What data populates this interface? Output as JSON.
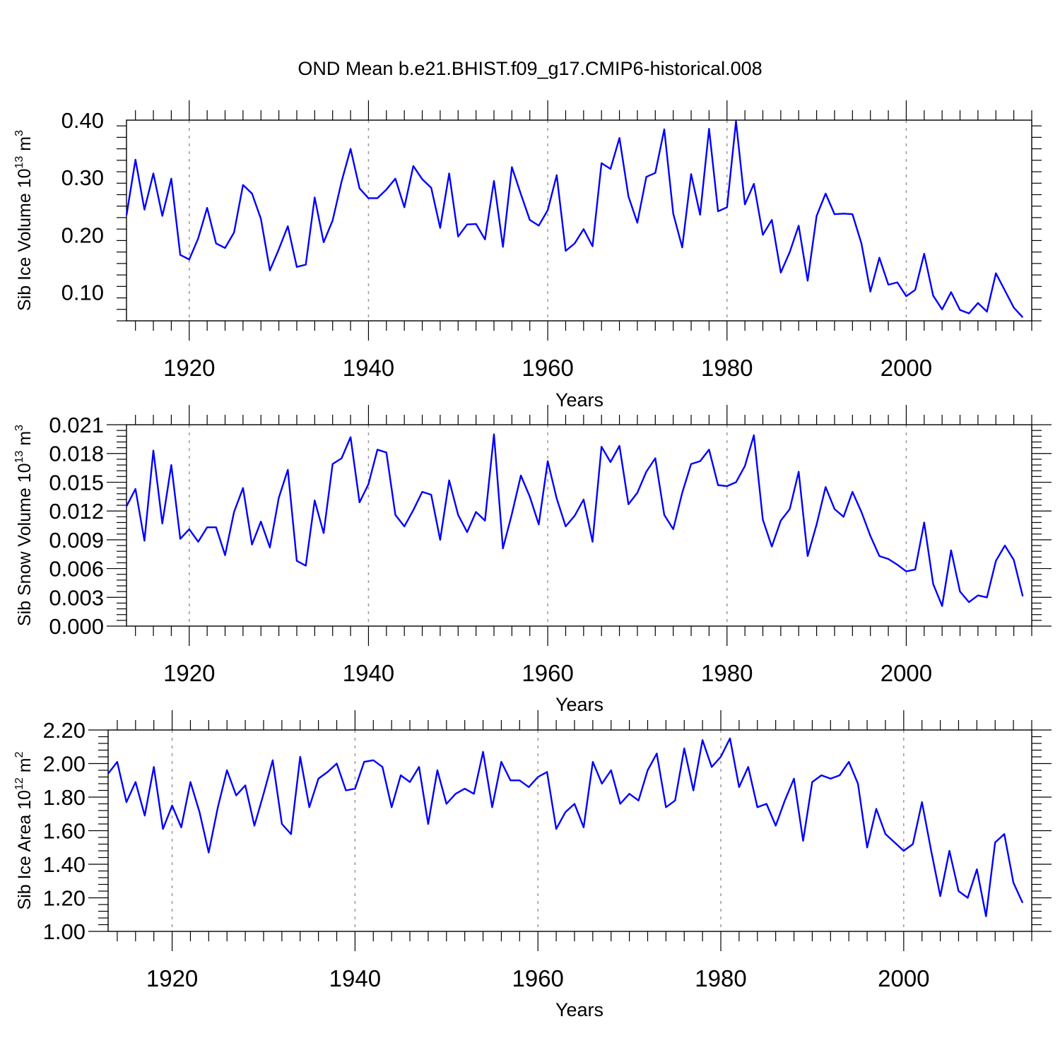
{
  "title": "OND Mean b.e21.BHIST.f09_g17.CMIP6-historical.008",
  "colors": {
    "line": "#0000ff",
    "axis": "#000000",
    "grid": "#999999"
  },
  "chart_data": [
    {
      "type": "line",
      "title": "",
      "xlabel": "Years",
      "ylabel": {
        "text": "Sib Ice Volume 10",
        "exp": "13",
        "unit": " m",
        "unit_exp": "3"
      },
      "xlim": [
        1913,
        2014
      ],
      "ylim": [
        0.05,
        0.4
      ],
      "xticks": [
        1920,
        1940,
        1960,
        1980,
        2000
      ],
      "xtick_labels": [
        "1920",
        "1940",
        "1960",
        "1980",
        "2000"
      ],
      "yticks": [
        0.1,
        0.2,
        0.3,
        0.4
      ],
      "ytick_labels": [
        "0.10",
        "0.20",
        "0.30",
        "0.40"
      ],
      "series": [
        {
          "name": "Sib Ice Volume",
          "x_start": 1913,
          "values": [
            0.234,
            0.331,
            0.244,
            0.307,
            0.233,
            0.298,
            0.165,
            0.157,
            0.194,
            0.247,
            0.185,
            0.177,
            0.204,
            0.287,
            0.272,
            0.228,
            0.138,
            0.175,
            0.215,
            0.144,
            0.148,
            0.265,
            0.187,
            0.225,
            0.293,
            0.35,
            0.281,
            0.264,
            0.264,
            0.279,
            0.298,
            0.248,
            0.32,
            0.297,
            0.282,
            0.212,
            0.307,
            0.197,
            0.218,
            0.219,
            0.192,
            0.294,
            0.179,
            0.318,
            0.271,
            0.226,
            0.216,
            0.243,
            0.304,
            0.172,
            0.185,
            0.21,
            0.18,
            0.325,
            0.315,
            0.369,
            0.267,
            0.221,
            0.301,
            0.308,
            0.384,
            0.237,
            0.178,
            0.306,
            0.235,
            0.385,
            0.241,
            0.248,
            0.398,
            0.253,
            0.289,
            0.2,
            0.226,
            0.134,
            0.17,
            0.216,
            0.12,
            0.233,
            0.272,
            0.236,
            0.237,
            0.236,
            0.185,
            0.101,
            0.16,
            0.113,
            0.117,
            0.093,
            0.104,
            0.167,
            0.094,
            0.07,
            0.1,
            0.069,
            0.063,
            0.081,
            0.066,
            0.133,
            0.103,
            0.073,
            0.056
          ]
        }
      ]
    },
    {
      "type": "line",
      "title": "",
      "xlabel": "Years",
      "ylabel": {
        "text": "Sib Snow Volume 10",
        "exp": "13",
        "unit": " m",
        "unit_exp": "3"
      },
      "xlim": [
        1913,
        2014
      ],
      "ylim": [
        0.0,
        0.021
      ],
      "xticks": [
        1920,
        1940,
        1960,
        1980,
        2000
      ],
      "xtick_labels": [
        "1920",
        "1940",
        "1960",
        "1980",
        "2000"
      ],
      "yticks": [
        0.0,
        0.003,
        0.006,
        0.009,
        0.012,
        0.015,
        0.018,
        0.021
      ],
      "ytick_labels": [
        "0.000",
        "0.003",
        "0.006",
        "0.009",
        "0.012",
        "0.015",
        "0.018",
        "0.021"
      ],
      "series": [
        {
          "name": "Sib Snow Volume",
          "x_start": 1913,
          "values": [
            0.0125,
            0.0143,
            0.0089,
            0.0183,
            0.0107,
            0.0168,
            0.0091,
            0.0101,
            0.0088,
            0.0103,
            0.0103,
            0.0074,
            0.0119,
            0.0144,
            0.0085,
            0.0109,
            0.0082,
            0.0134,
            0.0163,
            0.0068,
            0.0063,
            0.0131,
            0.0097,
            0.0169,
            0.0175,
            0.0197,
            0.0129,
            0.0148,
            0.0184,
            0.0181,
            0.0116,
            0.0104,
            0.0121,
            0.014,
            0.0137,
            0.009,
            0.0152,
            0.0116,
            0.0098,
            0.0119,
            0.011,
            0.02,
            0.0081,
            0.0117,
            0.0157,
            0.0135,
            0.0106,
            0.0172,
            0.0133,
            0.0104,
            0.0115,
            0.0132,
            0.0088,
            0.0187,
            0.0171,
            0.0188,
            0.0127,
            0.0139,
            0.0161,
            0.0175,
            0.0116,
            0.0101,
            0.0139,
            0.0169,
            0.0172,
            0.0184,
            0.0147,
            0.0146,
            0.015,
            0.0167,
            0.0199,
            0.0111,
            0.0083,
            0.011,
            0.0122,
            0.0161,
            0.0073,
            0.0106,
            0.0145,
            0.0122,
            0.0114,
            0.014,
            0.0119,
            0.0094,
            0.0073,
            0.007,
            0.0064,
            0.0057,
            0.0059,
            0.0108,
            0.0044,
            0.0021,
            0.0079,
            0.0036,
            0.0025,
            0.0032,
            0.003,
            0.0068,
            0.0084,
            0.0069,
            0.0031
          ]
        }
      ]
    },
    {
      "type": "line",
      "title": "",
      "xlabel": "Years",
      "ylabel": {
        "text": "Sib Ice Area 10",
        "exp": "12",
        "unit": " m",
        "unit_exp": "2"
      },
      "xlim": [
        1913,
        2014
      ],
      "ylim": [
        1.0,
        2.2
      ],
      "xticks": [
        1920,
        1940,
        1960,
        1980,
        2000
      ],
      "xtick_labels": [
        "1920",
        "1940",
        "1960",
        "1980",
        "2000"
      ],
      "yticks": [
        1.0,
        1.2,
        1.4,
        1.6,
        1.8,
        2.0,
        2.2
      ],
      "ytick_labels": [
        "1.00",
        "1.20",
        "1.40",
        "1.60",
        "1.80",
        "2.00",
        "2.20"
      ],
      "series": [
        {
          "name": "Sib Ice Area",
          "x_start": 1913,
          "values": [
            1.94,
            2.01,
            1.77,
            1.89,
            1.69,
            1.98,
            1.61,
            1.75,
            1.62,
            1.89,
            1.71,
            1.47,
            1.74,
            1.96,
            1.81,
            1.87,
            1.63,
            1.82,
            2.02,
            1.64,
            1.58,
            2.04,
            1.74,
            1.91,
            1.95,
            2.0,
            1.84,
            1.85,
            2.01,
            2.02,
            1.98,
            1.74,
            1.93,
            1.89,
            1.98,
            1.64,
            1.96,
            1.76,
            1.82,
            1.85,
            1.82,
            2.07,
            1.74,
            2.01,
            1.9,
            1.9,
            1.86,
            1.92,
            1.95,
            1.61,
            1.71,
            1.76,
            1.62,
            2.01,
            1.88,
            1.96,
            1.76,
            1.82,
            1.78,
            1.96,
            2.06,
            1.74,
            1.78,
            2.09,
            1.84,
            2.14,
            1.98,
            2.04,
            2.15,
            1.86,
            1.98,
            1.74,
            1.76,
            1.63,
            1.78,
            1.91,
            1.54,
            1.89,
            1.93,
            1.91,
            1.93,
            2.01,
            1.88,
            1.5,
            1.73,
            1.58,
            1.53,
            1.48,
            1.52,
            1.77,
            1.48,
            1.21,
            1.48,
            1.24,
            1.2,
            1.37,
            1.09,
            1.53,
            1.58,
            1.29,
            1.17
          ]
        }
      ]
    }
  ]
}
